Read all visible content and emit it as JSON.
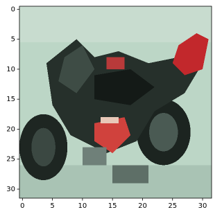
{
  "chart_data": {
    "type": "image",
    "xlim": [
      -0.5,
      31.5
    ],
    "ylim": [
      31.5,
      -0.5
    ],
    "xticks": [
      0,
      5,
      10,
      15,
      20,
      25,
      30
    ],
    "yticks": [
      0,
      5,
      10,
      15,
      20,
      25,
      30
    ]
  }
}
